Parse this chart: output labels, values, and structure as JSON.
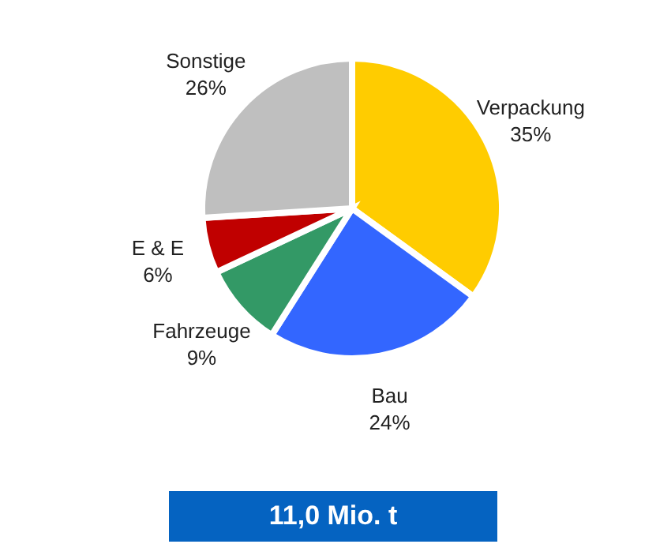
{
  "chart_data": {
    "type": "pie",
    "categories": [
      "Verpackung",
      "Bau",
      "Fahrzeuge",
      "E & E",
      "Sonstige"
    ],
    "values": [
      35,
      24,
      9,
      6,
      26
    ],
    "value_labels": [
      "35%",
      "24%",
      "9%",
      "6%",
      "26%"
    ],
    "colors": [
      "#ffcc00",
      "#3366ff",
      "#339966",
      "#c00000",
      "#bfbfbf"
    ],
    "annotations": [
      "11,0 Mio. t"
    ],
    "legend": false
  }
}
